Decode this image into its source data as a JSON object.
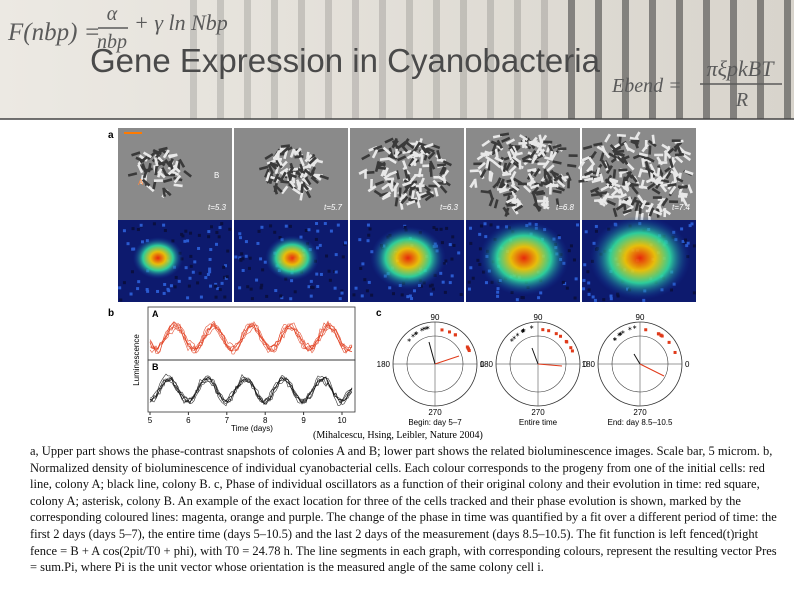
{
  "header": {
    "title": "Gene Expression in Cyanobacteria",
    "equation_left": {
      "lhs": "F(nbp) =",
      "numerator": "α",
      "denominator": "nbp",
      "rest": "+ γ ln Nbp"
    },
    "equation_right": {
      "lhs": "Ebend =",
      "numerator": "πξpkBT",
      "denominator": "R"
    }
  },
  "figure": {
    "panel_a": {
      "label": "a",
      "colonies": [
        "A",
        "B"
      ],
      "times": [
        "t=5.3",
        "t=5.7",
        "t=6.3",
        "t=6.8",
        "t=7.4"
      ]
    },
    "panel_b": {
      "label": "b",
      "rows": [
        "A",
        "B"
      ],
      "y_label": "Luminescence",
      "x_label": "Time (days)",
      "x_ticks": [
        "5",
        "6",
        "7",
        "8",
        "9",
        "10"
      ]
    },
    "panel_c": {
      "label": "c",
      "angles": {
        "top": "90",
        "left": "180",
        "right": "0",
        "bottom": "270"
      },
      "captions": [
        "Begin: day 5–7",
        "Entire time",
        "End: day 8.5–10.5"
      ]
    },
    "citation": "(Mihalcescu, Hsing, Leibler, Nature 2004)"
  },
  "caption": "a, Upper part shows the phase-contrast snapshots of colonies A and B; lower part shows the related bioluminescence images. Scale bar, 5 microm. b, Normalized density of bioluminescence of individual cyanobacterial cells. Each colour corresponds to the progeny from one of the initial cells: red line, colony A; black line, colony B. c, Phase of individual oscillators as a function of their original colony and their evolution in time: red square, colony A; asterisk, colony B. An example of the exact location for three of the cells tracked and their phase evolution is shown, marked by the corresponding coloured lines: magenta, orange and purple. The change of the phase in time was quantified by a fit over a different period of time: the first 2 days (days 5–7), the entire time (days 5–10.5) and the last 2 days of the measurement (days 8.5–10.5). The fit function is left fenced(t)right fence = B + A cos(2pit/T0 + phi), with T0 = 24.78 h. The line segments in each graph, with corresponding colours, represent the resulting vector Pres = sum.Pi, where Pi is the unit vector whose orientation is the measured angle of the same colony cell i."
}
